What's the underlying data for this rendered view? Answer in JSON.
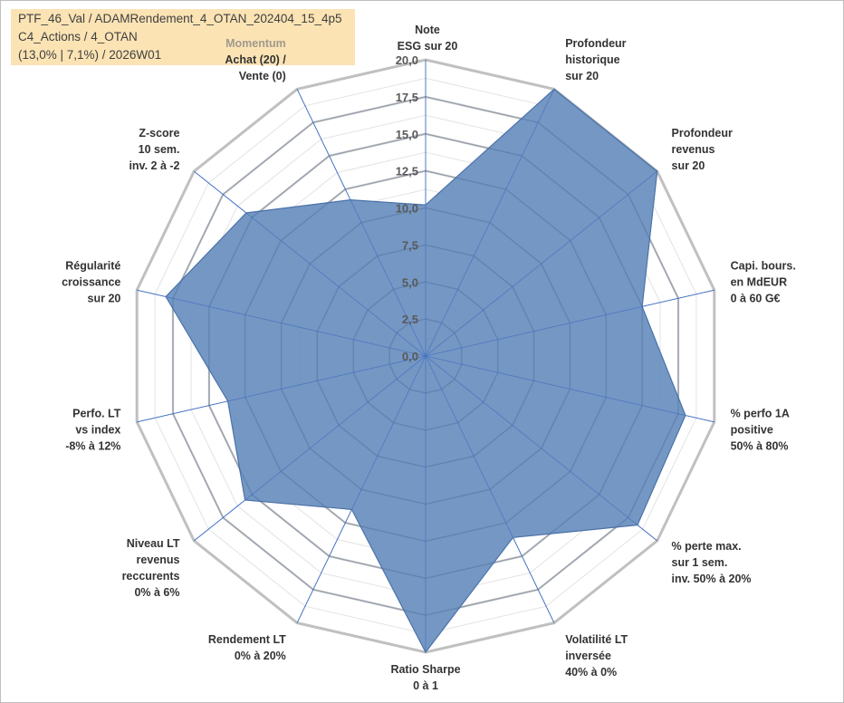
{
  "header": {
    "line1": "PTF_46_Val / ADAMRendement_4_OTAN_202404_15_4p5",
    "line2": "C4_Actions / 4_OTAN",
    "line3": "(13,0% | 7,1%) / 2026W01"
  },
  "colors": {
    "fill": "#6a8fbe",
    "stroke": "#4a72aa",
    "ring": "#c0c0c0",
    "spoke": "#4472c4",
    "box": "#fbe3b4"
  },
  "chart_data": {
    "type": "radar",
    "rmax": 20,
    "tick_labels": [
      "0,0",
      "2,5",
      "5,0",
      "7,5",
      "10,0",
      "12,5",
      "15,0",
      "17,5",
      "20,0"
    ],
    "axes": [
      {
        "lines": [
          "Note",
          "ESG sur 20"
        ],
        "value": 10.2
      },
      {
        "lines": [
          "Profondeur",
          "historique",
          "sur 20"
        ],
        "value": 20
      },
      {
        "lines": [
          "Profondeur",
          "revenus",
          "sur 20"
        ],
        "value": 20
      },
      {
        "lines": [
          "Capi. bours.",
          "en MdEUR",
          "0 à 60 G€"
        ],
        "value": 15
      },
      {
        "lines": [
          "% perfo 1A",
          "positive",
          "50% à 80%"
        ],
        "value": 18
      },
      {
        "lines": [
          "% perte max.",
          "sur 1 sem.",
          "inv. 50% à 20%"
        ],
        "value": 18.3
      },
      {
        "lines": [
          "Volatilité LT",
          "inversée",
          "40% à 0%"
        ],
        "value": 13.6
      },
      {
        "lines": [
          "Ratio Sharpe",
          "0 à 1"
        ],
        "value": 20
      },
      {
        "lines": [
          "Rendement LT",
          "0% à 20%"
        ],
        "value": 11.5
      },
      {
        "lines": [
          "Niveau LT",
          "revenus",
          "reccurents",
          "0% à 6%"
        ],
        "value": 15.6
      },
      {
        "lines": [
          "Perfo. LT",
          "vs index",
          "-8% à 12%"
        ],
        "value": 13.7
      },
      {
        "lines": [
          "Régularité",
          "croissance",
          "sur 20"
        ],
        "value": 18
      },
      {
        "lines": [
          "Z-score",
          "10 sem.",
          "inv. 2 à -2"
        ],
        "value": 15.5
      },
      {
        "lines": [
          "Momentum",
          "Achat (20) /",
          "Vente (0)"
        ],
        "value": 11.7
      }
    ]
  }
}
